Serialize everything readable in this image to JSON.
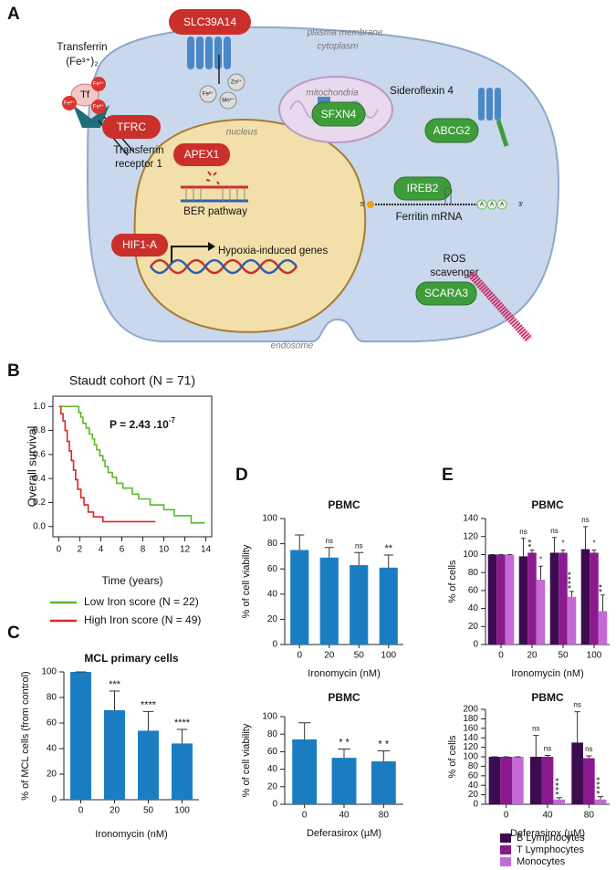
{
  "diagram": {
    "letter": "A",
    "plasma_membrane": "plasma membrane",
    "cytoplasm": "cytoplasm",
    "transferrin": [
      "Transferrin",
      "(Fe³⁺)₂"
    ],
    "tf": "Tf",
    "fe3": "Fe³⁺",
    "slc39a14": "SLC39A14",
    "zn": "Zn²⁺",
    "mn": "Mn²⁺",
    "fe2": "Fe²⁺",
    "tfrc": "TFRC",
    "tfr1": [
      "Transferrin",
      "receptor 1"
    ],
    "nucleus": "nucleus",
    "mitochondria": "mitochondria",
    "sfxn4": "SFXN4",
    "sideroflexin": "Sideroflexin 4",
    "abcg2": "ABCG2",
    "apex1": "APEX1",
    "ber": "BER pathway",
    "ireb2": "IREB2",
    "mrna_5": "5'",
    "mrna_3": "3'",
    "poly_a": "A",
    "ferritin": "Ferritin mRNA",
    "hif1a": "HIF1-A",
    "hypoxia": "Hypoxia-induced genes",
    "ros": [
      "ROS",
      "scavenger"
    ],
    "scara3": "SCARA3",
    "endosome": "endosome"
  },
  "chart_data": [
    {
      "type": "line",
      "letter": "B",
      "title": "Staudt cohort (N = 71)",
      "annotation": "P = 2.43 .10",
      "annotation_exponent": "-7",
      "ylabel": "Overall survival",
      "xlabel": "Time (years)",
      "xlim": [
        -0.56,
        14.56
      ],
      "xticks": [
        0,
        2,
        4,
        6,
        8,
        10,
        12,
        14
      ],
      "ylim": [
        -0.04,
        1.04
      ],
      "yticks": [
        {
          "value": 0,
          "label": "0.0"
        },
        {
          "value": 0.2,
          "label": "0.2"
        },
        {
          "value": 0.4,
          "label": "0.4"
        },
        {
          "value": 0.6,
          "label": "0.6"
        },
        {
          "value": 0.8,
          "label": "0.8"
        },
        {
          "value": 1,
          "label": "1.0"
        }
      ],
      "series": [
        {
          "name": "Low Iron score (N = 22)",
          "color": "#5cb82e",
          "x": [
            0,
            1.9,
            1.9,
            2.1,
            2.1,
            2.3,
            2.3,
            2.6,
            2.6,
            2.9,
            2.9,
            3.2,
            3.2,
            3.4,
            3.4,
            3.6,
            3.6,
            3.9,
            3.9,
            4.2,
            4.2,
            4.4,
            4.4,
            4.7,
            4.7,
            5.1,
            5.1,
            5.5,
            5.5,
            6.1,
            6.1,
            7.0,
            7.0,
            7.6,
            7.6,
            8.7,
            8.7,
            10.0,
            10.0,
            11.0,
            11.0,
            12.6,
            12.6,
            13.9
          ],
          "values": [
            1,
            1,
            0.95,
            0.95,
            0.91,
            0.91,
            0.86,
            0.86,
            0.82,
            0.82,
            0.77,
            0.77,
            0.73,
            0.73,
            0.68,
            0.68,
            0.64,
            0.64,
            0.59,
            0.59,
            0.55,
            0.55,
            0.5,
            0.5,
            0.45,
            0.45,
            0.41,
            0.41,
            0.36,
            0.36,
            0.32,
            0.32,
            0.27,
            0.27,
            0.23,
            0.23,
            0.18,
            0.18,
            0.14,
            0.14,
            0.09,
            0.09,
            0.03,
            0.03
          ]
        },
        {
          "name": "High Iron score (N = 49)",
          "color": "#d9262b",
          "x": [
            0,
            0.2,
            0.2,
            0.4,
            0.4,
            0.6,
            0.6,
            0.8,
            0.8,
            1.0,
            1.0,
            1.2,
            1.2,
            1.4,
            1.4,
            1.6,
            1.6,
            1.8,
            1.8,
            2.1,
            2.1,
            2.4,
            2.4,
            2.8,
            2.8,
            3.3,
            3.3,
            4.2,
            4.2,
            9.2
          ],
          "values": [
            1,
            1,
            0.94,
            0.94,
            0.88,
            0.88,
            0.8,
            0.8,
            0.71,
            0.71,
            0.63,
            0.63,
            0.55,
            0.55,
            0.47,
            0.47,
            0.39,
            0.39,
            0.31,
            0.31,
            0.24,
            0.24,
            0.18,
            0.18,
            0.12,
            0.12,
            0.08,
            0.08,
            0.04,
            0.04
          ]
        }
      ]
    },
    {
      "type": "bar",
      "letter": "C",
      "title": "MCL primary cells",
      "ylabel": "% of MCL cells (from control)",
      "xlabel": "Ironomycin (nM)",
      "categories": [
        "0",
        "20",
        "50",
        "100"
      ],
      "ylim": [
        0,
        100
      ],
      "yticks": [
        0,
        20,
        40,
        60,
        80,
        100
      ],
      "series": [
        {
          "color": "#1b7dc1",
          "values": [
            100,
            70,
            54,
            44
          ],
          "errors": [
            0,
            15,
            15,
            11
          ],
          "annotations": [
            null,
            "***",
            "****",
            "****"
          ]
        }
      ]
    },
    {
      "type": "bar",
      "letter": "D",
      "title": "PBMC",
      "ylabel": "% of cell viability",
      "xlabel": "Ironomycin (nM)",
      "categories": [
        "0",
        "20",
        "50",
        "100"
      ],
      "ylim": [
        0,
        100
      ],
      "yticks": [
        0,
        20,
        40,
        60,
        80,
        100
      ],
      "series": [
        {
          "color": "#1b7dc1",
          "values": [
            75,
            69,
            63,
            61
          ],
          "errors": [
            12,
            8,
            10,
            10
          ],
          "annotations": [
            null,
            "ns",
            "ns",
            "**"
          ]
        }
      ]
    },
    {
      "type": "bar",
      "title": "PBMC",
      "ylabel": "% of cell viability",
      "xlabel": "Deferasirox (µM)",
      "categories": [
        "0",
        "40",
        "80"
      ],
      "ylim": [
        0,
        100
      ],
      "yticks": [
        0,
        20,
        40,
        60,
        80,
        100
      ],
      "series": [
        {
          "color": "#1b7dc1",
          "values": [
            74,
            53,
            49
          ],
          "errors": [
            19,
            10,
            12
          ],
          "annotations": [
            null,
            "* *",
            "* *"
          ]
        }
      ]
    },
    {
      "type": "bar",
      "letter": "E",
      "title": "PBMC",
      "ylabel": "% of cells",
      "xlabel": "Ironomycin (nM)",
      "annotation_orientation": "vertical",
      "categories": [
        "0",
        "20",
        "50",
        "100"
      ],
      "ylim": [
        0,
        140
      ],
      "yticks": [
        0,
        20,
        40,
        60,
        80,
        100,
        120,
        140
      ],
      "series": [
        {
          "color": "#3d0b4f",
          "values": [
            100,
            98,
            102,
            106
          ],
          "errors": [
            0,
            20,
            17,
            25
          ],
          "annotations": [
            null,
            "ns",
            "ns",
            "ns"
          ]
        },
        {
          "color": "#8b1a8f",
          "values": [
            100,
            102,
            102,
            102
          ],
          "errors": [
            0,
            3,
            3,
            3
          ],
          "annotations": [
            null,
            "**",
            "*",
            "*"
          ]
        },
        {
          "color": "#c46ad6",
          "values": [
            100,
            72,
            53,
            37
          ],
          "errors": [
            0,
            15,
            6,
            18
          ],
          "annotations": [
            null,
            "*",
            "****",
            "**"
          ]
        }
      ]
    },
    {
      "type": "bar",
      "title": "PBMC",
      "ylabel": "% of cells",
      "xlabel": "Deferasirox (µM)",
      "annotation_orientation": "vertical",
      "categories": [
        "0",
        "40",
        "80"
      ],
      "ylim": [
        0,
        200
      ],
      "yticks": [
        0,
        20,
        40,
        60,
        80,
        100,
        120,
        140,
        160,
        180,
        200
      ],
      "series": [
        {
          "name": "B Lymphocytes",
          "color": "#3d0b4f",
          "values": [
            100,
            100,
            130
          ],
          "errors": [
            0,
            45,
            65
          ],
          "annotations": [
            null,
            "ns",
            "ns"
          ]
        },
        {
          "name": "T Lymphocytes",
          "color": "#8b1a8f",
          "values": [
            100,
            100,
            97
          ],
          "errors": [
            0,
            3,
            5
          ],
          "annotations": [
            null,
            "ns",
            "ns"
          ]
        },
        {
          "name": "Monocytes",
          "color": "#c46ad6",
          "values": [
            100,
            10,
            10
          ],
          "errors": [
            0,
            4,
            6
          ],
          "annotations": [
            null,
            "****",
            "****"
          ]
        }
      ]
    }
  ]
}
